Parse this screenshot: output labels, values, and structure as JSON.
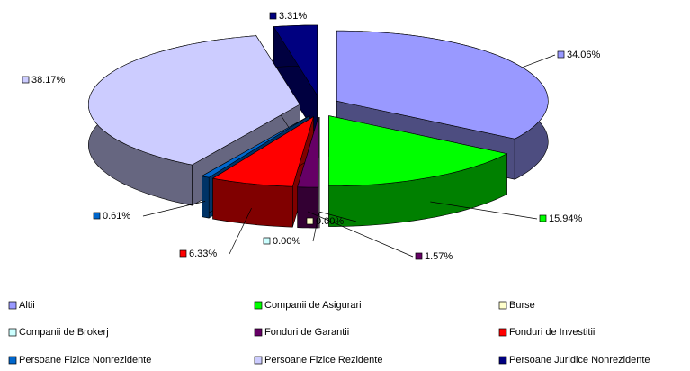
{
  "chart_data": {
    "type": "pie3d",
    "categories": [
      "Altii",
      "Companii de Asigurari",
      "Burse",
      "Companii de Brokerj",
      "Fonduri de Garantii",
      "Fonduri de Investitii",
      "Persoane Fizice Nonrezidente",
      "Persoane Fizice Rezidente",
      "Persoane Juridice Nonrezidente"
    ],
    "values": [
      34.06,
      15.94,
      0.0,
      0.0,
      1.57,
      6.33,
      0.61,
      38.17,
      3.31
    ],
    "value_labels": [
      "34.06%",
      "15.94%",
      "0.00%",
      "0.00%",
      "1.57%",
      "6.33%",
      "0.61%",
      "38.17%",
      "3.31%"
    ],
    "colors": [
      "#9999ff",
      "#00ff00",
      "#ffffcc",
      "#ccffff",
      "#660066",
      "#ff0000",
      "#0066cc",
      "#ccccff",
      "#000080"
    ]
  }
}
